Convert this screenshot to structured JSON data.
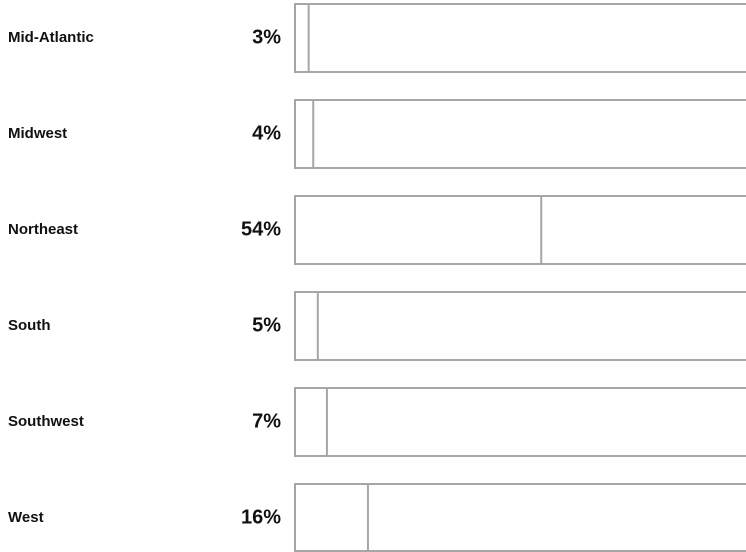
{
  "chart_data": {
    "type": "bar",
    "categories": [
      "Mid-Atlantic",
      "Midwest",
      "Northeast",
      "South",
      "Southwest",
      "West"
    ],
    "values": [
      3,
      4,
      54,
      5,
      7,
      16
    ],
    "value_labels": [
      "3%",
      "4%",
      "54%",
      "5%",
      "7%",
      "16%"
    ],
    "xlim": [
      0,
      100
    ]
  }
}
